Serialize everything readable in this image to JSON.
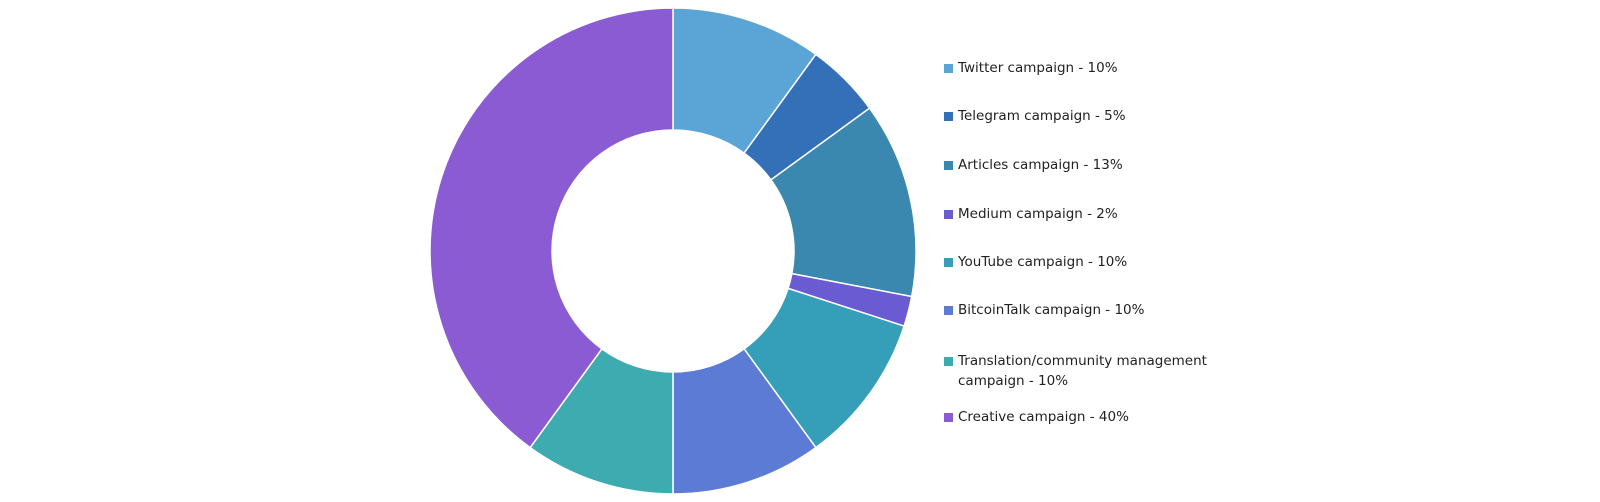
{
  "chart_data": {
    "type": "pie",
    "donut": true,
    "legend_position": "right",
    "slices": [
      {
        "label": "Twitter campaign - 10%",
        "value": 10,
        "color": "#5aa5d6"
      },
      {
        "label": "Telegram campaign - 5%",
        "value": 5,
        "color": "#3370b8"
      },
      {
        "label": "Articles campaign - 13%",
        "value": 13,
        "color": "#3a88b0"
      },
      {
        "label": "Medium campaign - 2%",
        "value": 2,
        "color": "#6a5bd2"
      },
      {
        "label": "YouTube campaign - 10%",
        "value": 10,
        "color": "#359eb8"
      },
      {
        "label": "BitcoinTalk campaign - 10%",
        "value": 10,
        "color": "#5b7bd4"
      },
      {
        "label": "Translation/community management campaign - 10%",
        "value": 10,
        "color": "#3eabb0"
      },
      {
        "label": "Creative campaign - 40%",
        "value": 40,
        "color": "#8b5bd4"
      }
    ]
  }
}
